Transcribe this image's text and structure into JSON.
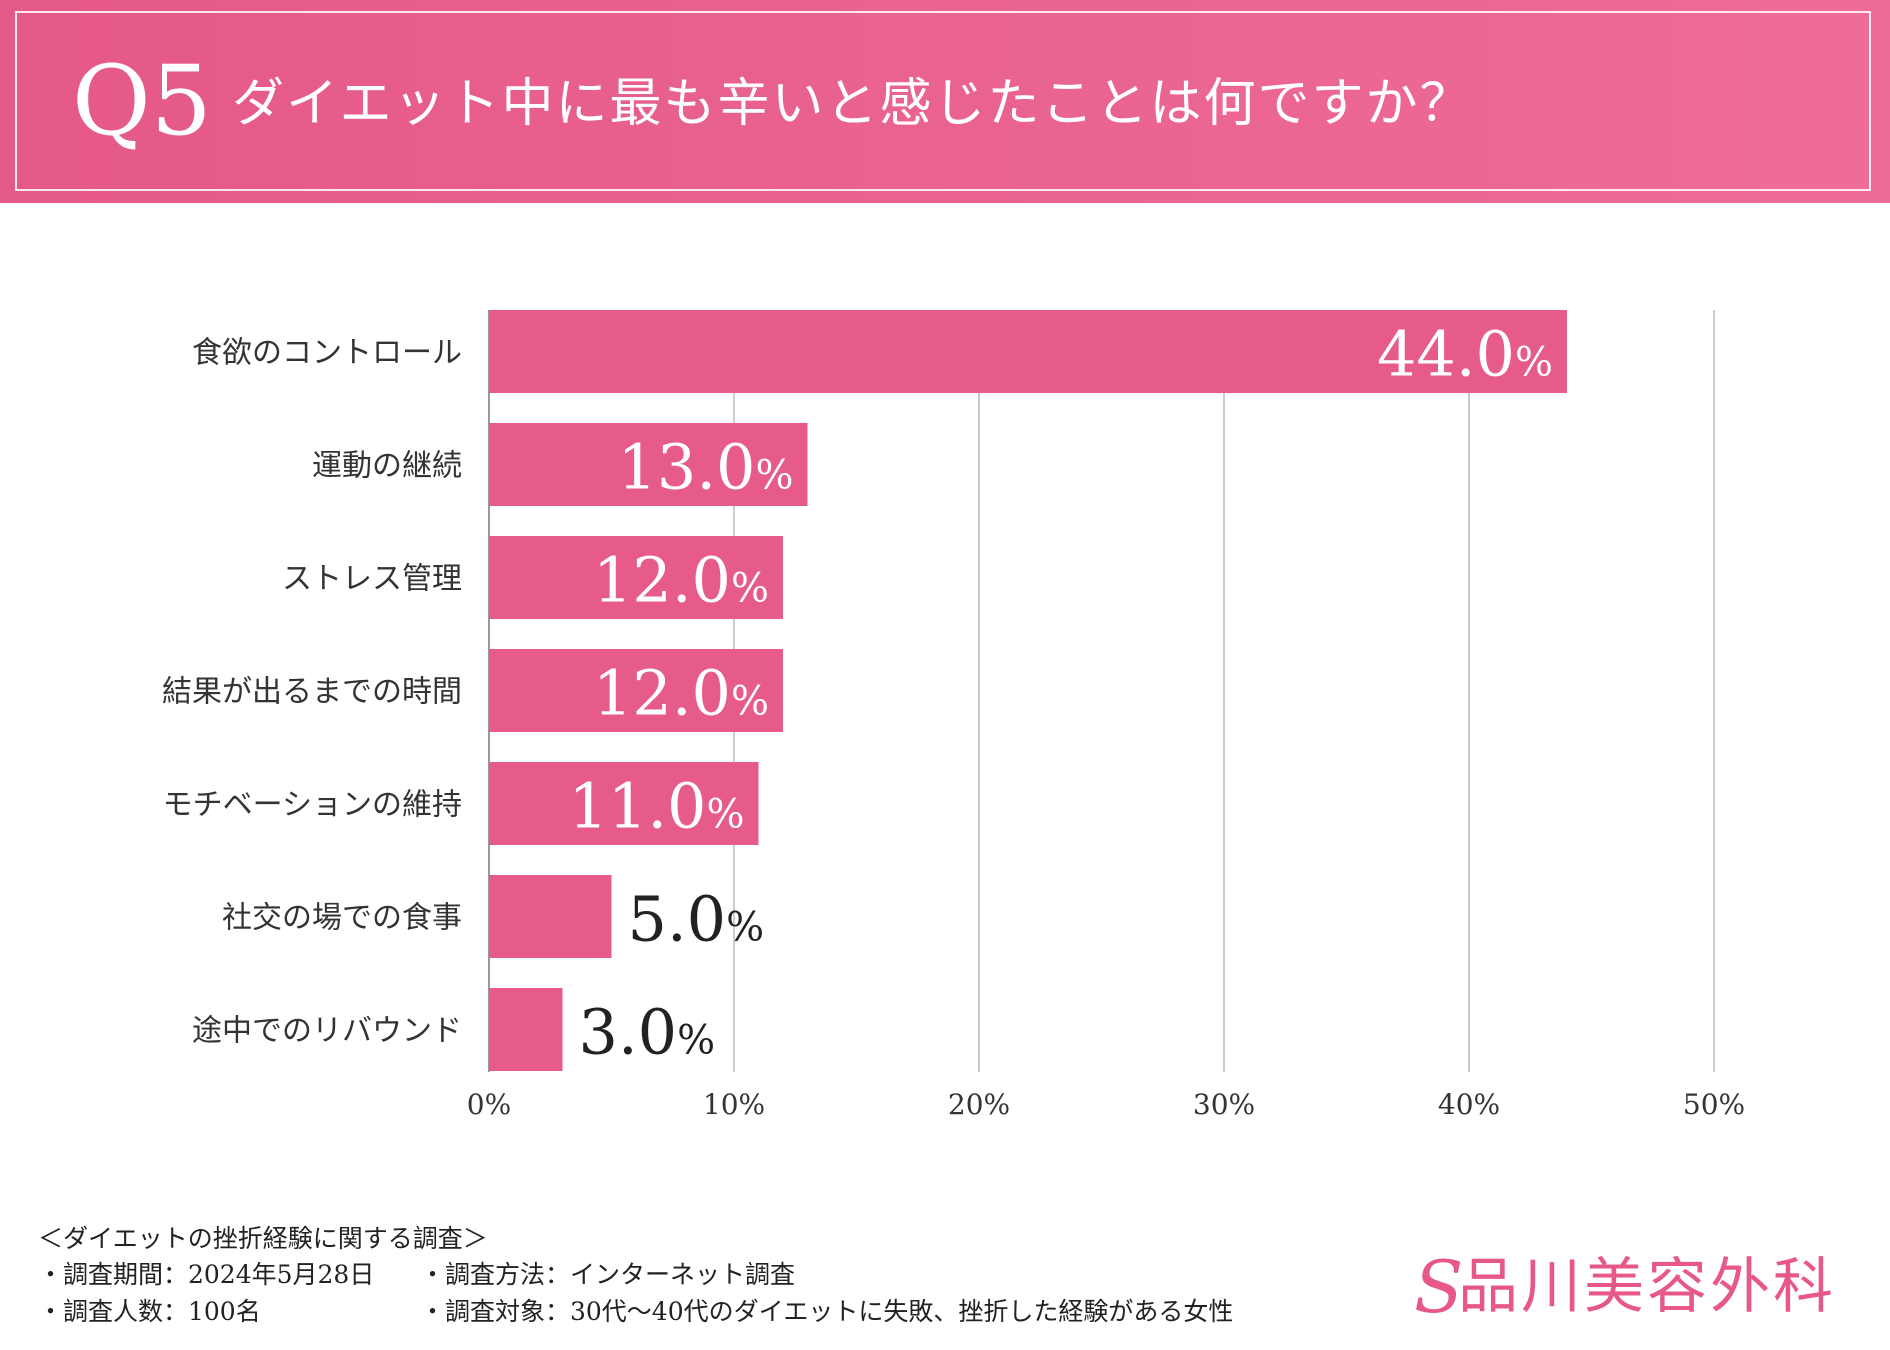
{
  "header": {
    "q_number": "Q5",
    "question": "ダイエット中に最も辛いと感じたことは何ですか？"
  },
  "chart_data": {
    "type": "bar",
    "orientation": "horizontal",
    "categories": [
      "食欲のコントロール",
      "運動の継続",
      "ストレス管理",
      "結果が出るまでの時間",
      "モチベーションの維持",
      "社交の場での食事",
      "途中でのリバウンド"
    ],
    "values": [
      44.0,
      13.0,
      12.0,
      12.0,
      11.0,
      5.0,
      3.0
    ],
    "value_labels": [
      "44.0",
      "13.0",
      "12.0",
      "12.0",
      "11.0",
      "5.0",
      "3.0"
    ],
    "value_unit": "%",
    "x_ticks": [
      "0%",
      "10%",
      "20%",
      "30%",
      "40%",
      "50%"
    ],
    "xlim": [
      0,
      50
    ],
    "grid": true,
    "title": "ダイエット中に最も辛いと感じたことは何ですか？",
    "bar_color": "#e65b8b"
  },
  "footer": {
    "survey_title": "＜ダイエットの挫折経験に関する調査＞",
    "period": "・調査期間：2024年5月28日",
    "people": "・調査人数：100名",
    "method": "・調査方法：インターネット調査",
    "target": "・調査対象：30代～40代のダイエットに失敗、挫折した経験がある女性"
  },
  "logo": {
    "mark": "S",
    "text": "品川美容外科"
  }
}
